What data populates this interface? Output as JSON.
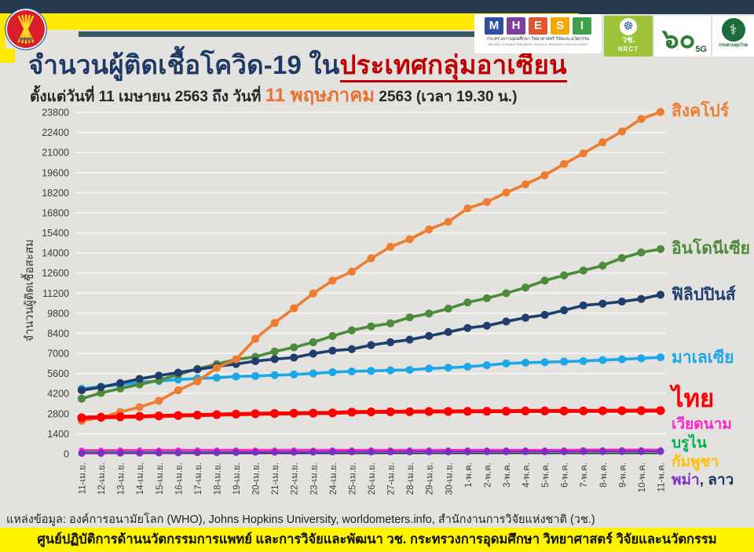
{
  "header": {
    "title_prefix": "จำนวนผู้ติดเชื้อโควิด-19 ใน",
    "title_highlight": "ประเทศกลุ่มอาเซียน",
    "subtitle_prefix": "ตั้งแต่วันที่ 11 เมษายน 2563 ถึง วันที่ ",
    "subtitle_highlight": "11 พฤษภาคม",
    "subtitle_suffix": " 2563 (เวลา 19.30 น.)",
    "logos": {
      "asean_label": "asean",
      "mhesi": {
        "letters": [
          "M",
          "H",
          "E",
          "S",
          "I"
        ],
        "thai": "กระทรวงการอุดมศึกษา วิทยาศาสตร์ วิจัยและนวัตกรรม",
        "eng": "Ministry of Higher Education, Science, Research and Innovation"
      },
      "nrct": {
        "thai": "วช.",
        "eng": "NRCT"
      },
      "sixty": {
        "numeral": "๖๐",
        "label": "5G"
      },
      "ddc": {
        "label": "กรมควบคุมโรค"
      }
    }
  },
  "chart_data": {
    "type": "line",
    "title": "จำนวนผู้ติดเชื้อโควิด-19 ในประเทศกลุ่มอาเซียน",
    "ylabel": "จำนวนผู้ติดเชื้อสะสม",
    "ylim": [
      0,
      23800
    ],
    "ytick_step": 1400,
    "grid": true,
    "legend_position": "right",
    "categories": [
      "11-เม.ย.",
      "12-เม.ย.",
      "13-เม.ย.",
      "14-เม.ย.",
      "15-เม.ย.",
      "16-เม.ย.",
      "17-เม.ย.",
      "18-เม.ย.",
      "19-เม.ย.",
      "20-เม.ย.",
      "21-เม.ย.",
      "22-เม.ย.",
      "23-เม.ย.",
      "24-เม.ย.",
      "25-เม.ย.",
      "26-เม.ย.",
      "27-เม.ย.",
      "28-เม.ย.",
      "29-เม.ย.",
      "30-เม.ย.",
      "1-พ.ค.",
      "2-พ.ค.",
      "3-พ.ค.",
      "4-พ.ค.",
      "5-พ.ค.",
      "6-พ.ค.",
      "7-พ.ค.",
      "8-พ.ค.",
      "9-พ.ค.",
      "10-พ.ค.",
      "11-พ.ค."
    ],
    "series": [
      {
        "key": "singapore",
        "name": "สิงคโปร์",
        "color": "#ED7D31",
        "values": [
          2299,
          2532,
          2918,
          3252,
          3699,
          4427,
          5050,
          5992,
          6588,
          8014,
          9125,
          10141,
          11178,
          12075,
          12693,
          13624,
          14423,
          14951,
          15641,
          16169,
          17101,
          17548,
          18205,
          18778,
          19410,
          20198,
          20939,
          21707,
          22460,
          23336,
          23822
        ]
      },
      {
        "key": "indonesia",
        "name": "อินโดนีเซีย",
        "color": "#4E8A3C",
        "values": [
          3842,
          4241,
          4557,
          4839,
          5136,
          5516,
          5923,
          6248,
          6575,
          6760,
          7135,
          7418,
          7775,
          8211,
          8607,
          8882,
          9096,
          9511,
          9771,
          10118,
          10551,
          10843,
          11192,
          11587,
          12071,
          12438,
          12776,
          13112,
          13645,
          14032,
          14265
        ]
      },
      {
        "key": "philippines",
        "name": "ฟิลิปปินส์",
        "color": "#1F3E6E",
        "values": [
          4428,
          4648,
          4932,
          5223,
          5453,
          5660,
          5878,
          6087,
          6259,
          6459,
          6599,
          6710,
          6981,
          7192,
          7294,
          7579,
          7777,
          7958,
          8212,
          8488,
          8772,
          8928,
          9223,
          9485,
          9684,
          10004,
          10343,
          10463,
          10610,
          10794,
          11086
        ]
      },
      {
        "key": "malaysia",
        "name": "มาเลเซีย",
        "color": "#1CA7E8",
        "values": [
          4530,
          4683,
          4817,
          4987,
          5072,
          5182,
          5251,
          5305,
          5389,
          5425,
          5482,
          5532,
          5603,
          5691,
          5742,
          5780,
          5820,
          5851,
          5945,
          6002,
          6071,
          6176,
          6298,
          6353,
          6383,
          6428,
          6467,
          6535,
          6589,
          6656,
          6726
        ]
      },
      {
        "key": "thailand",
        "name": "ไทย",
        "color": "#FF0000",
        "values": [
          2518,
          2551,
          2579,
          2613,
          2643,
          2672,
          2700,
          2733,
          2765,
          2792,
          2811,
          2826,
          2839,
          2854,
          2907,
          2922,
          2931,
          2938,
          2947,
          2954,
          2960,
          2966,
          2969,
          2987,
          2988,
          2989,
          2992,
          3000,
          3004,
          3009,
          3015
        ]
      },
      {
        "key": "vietnam",
        "name": "เวียดนาม",
        "color": "#FF23CC",
        "values": [
          257,
          258,
          262,
          266,
          267,
          268,
          268,
          268,
          268,
          268,
          268,
          268,
          268,
          270,
          270,
          270,
          270,
          270,
          270,
          270,
          270,
          270,
          271,
          271,
          271,
          271,
          288,
          288,
          288,
          288,
          288
        ]
      },
      {
        "key": "brunei",
        "name": "บรูไน",
        "color": "#00B050",
        "values": [
          136,
          136,
          136,
          136,
          136,
          137,
          137,
          138,
          138,
          138,
          138,
          138,
          138,
          138,
          138,
          138,
          138,
          138,
          139,
          139,
          139,
          140,
          140,
          141,
          141,
          141,
          141,
          141,
          141,
          141,
          141
        ]
      },
      {
        "key": "cambodia",
        "name": "กัมพูชา",
        "color": "#FFC000",
        "values": [
          120,
          122,
          122,
          122,
          122,
          122,
          122,
          122,
          122,
          122,
          122,
          122,
          122,
          122,
          122,
          122,
          122,
          122,
          122,
          122,
          122,
          122,
          122,
          122,
          122,
          122,
          122,
          122,
          122,
          122,
          122
        ]
      },
      {
        "key": "myanmar",
        "name": "พม่า",
        "color": "#7E2FBE",
        "values": [
          38,
          41,
          62,
          63,
          74,
          85,
          88,
          94,
          111,
          119,
          121,
          123,
          127,
          144,
          146,
          146,
          146,
          150,
          150,
          151,
          151,
          155,
          155,
          161,
          161,
          161,
          176,
          177,
          178,
          180,
          180
        ]
      },
      {
        "key": "laos",
        "name": "ลาว",
        "color": "#17365D",
        "values": [
          19,
          19,
          19,
          19,
          19,
          19,
          19,
          19,
          19,
          19,
          19,
          19,
          19,
          19,
          19,
          19,
          19,
          19,
          19,
          19,
          19,
          19,
          19,
          19,
          19,
          19,
          19,
          19,
          19,
          19,
          19
        ]
      }
    ]
  },
  "footer": {
    "source": "แหล่งข้อมูล: องค์การอนามัยโลก (WHO), Johns Hopkins University, worldometers.info, สำนักงานการวิจัยแห่งชาติ (วช.)",
    "banner": "ศูนย์ปฏิบัติการด้านนวัตกรรมการแพทย์ และการวิจัยและพัฒนา  วช.   กระทรวงการอุดมศึกษา วิทยาศาสตร์ วิจัยและนวัตกรรม"
  }
}
